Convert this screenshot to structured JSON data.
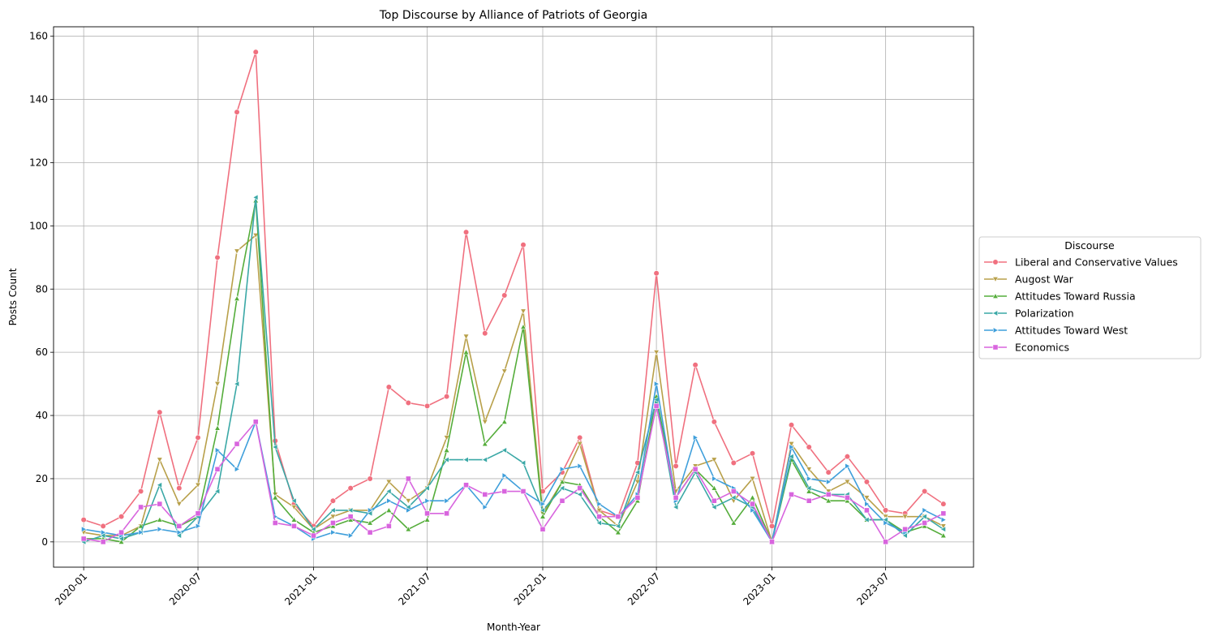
{
  "chart_data": {
    "type": "line",
    "title": "Top Discourse by Alliance of Patriots of Georgia",
    "xlabel": "Month-Year",
    "ylabel": "Posts Count",
    "x": [
      "2020-01",
      "2020-02",
      "2020-03",
      "2020-04",
      "2020-05",
      "2020-06",
      "2020-07",
      "2020-08",
      "2020-09",
      "2020-10",
      "2020-11",
      "2020-12",
      "2021-01",
      "2021-02",
      "2021-03",
      "2021-04",
      "2021-05",
      "2021-06",
      "2021-07",
      "2021-08",
      "2021-09",
      "2021-10",
      "2021-11",
      "2021-12",
      "2022-01",
      "2022-02",
      "2022-03",
      "2022-04",
      "2022-05",
      "2022-06",
      "2022-07",
      "2022-08",
      "2022-09",
      "2022-10",
      "2022-11",
      "2022-12",
      "2023-01",
      "2023-02",
      "2023-03",
      "2023-04",
      "2023-05",
      "2023-06",
      "2023-07",
      "2023-08",
      "2023-09",
      "2023-10"
    ],
    "x_ticks": [
      "2020-01",
      "2020-07",
      "2021-01",
      "2021-07",
      "2022-01",
      "2022-07",
      "2023-01",
      "2023-07"
    ],
    "y_ticks": [
      0,
      20,
      40,
      60,
      80,
      100,
      120,
      140,
      160
    ],
    "xlim": [
      "2019-11-14",
      "2023-11-18"
    ],
    "ylim": [
      -8,
      163
    ],
    "grid": true,
    "legend_title": "Discourse",
    "legend_position": "center-right-outside",
    "series": [
      {
        "name": "Liberal and Conservative Values",
        "color": "#f0707f",
        "marker": "circle",
        "values": [
          7,
          5,
          8,
          16,
          41,
          17,
          33,
          90,
          136,
          155,
          32,
          12,
          5,
          13,
          17,
          20,
          49,
          44,
          43,
          46,
          98,
          66,
          78,
          94,
          16,
          22,
          33,
          10,
          8,
          25,
          85,
          24,
          56,
          38,
          25,
          28,
          5,
          37,
          30,
          22,
          27,
          19,
          10,
          9,
          16,
          12
        ]
      },
      {
        "name": "Augost War",
        "color": "#b8a04a",
        "marker": "triangle-down",
        "values": [
          3,
          2,
          2,
          5,
          26,
          12,
          18,
          50,
          92,
          97,
          15,
          11,
          4,
          8,
          10,
          10,
          19,
          13,
          17,
          33,
          65,
          38,
          54,
          73,
          9,
          19,
          31,
          10,
          5,
          19,
          60,
          16,
          24,
          26,
          13,
          20,
          0,
          31,
          23,
          16,
          19,
          14,
          8,
          8,
          8,
          5
        ]
      },
      {
        "name": "Attitudes Toward Russia",
        "color": "#55ad3b",
        "marker": "triangle-up",
        "values": [
          1,
          1,
          0,
          5,
          7,
          5,
          8,
          36,
          77,
          108,
          14,
          7,
          3,
          5,
          7,
          6,
          10,
          4,
          7,
          29,
          60,
          31,
          38,
          68,
          8,
          19,
          18,
          8,
          3,
          13,
          46,
          14,
          23,
          17,
          6,
          14,
          0,
          26,
          16,
          13,
          13,
          7,
          7,
          3,
          5,
          2
        ]
      },
      {
        "name": "Polarization",
        "color": "#3aa8a6",
        "marker": "triangle-left",
        "values": [
          0,
          2,
          1,
          3,
          18,
          2,
          8,
          16,
          50,
          109,
          30,
          13,
          4,
          10,
          10,
          9,
          16,
          11,
          17,
          26,
          26,
          26,
          29,
          25,
          10,
          17,
          15,
          6,
          5,
          22,
          45,
          11,
          22,
          11,
          14,
          11,
          0,
          27,
          17,
          15,
          15,
          7,
          7,
          2,
          8,
          4
        ]
      },
      {
        "name": "Attitudes Toward West",
        "color": "#3f9fdb",
        "marker": "triangle-right",
        "values": [
          4,
          3,
          2,
          3,
          4,
          3,
          5,
          29,
          23,
          38,
          8,
          5,
          1,
          3,
          2,
          10,
          13,
          10,
          13,
          13,
          18,
          11,
          21,
          16,
          12,
          23,
          24,
          12,
          8,
          15,
          50,
          13,
          33,
          20,
          17,
          10,
          0,
          30,
          20,
          19,
          24,
          12,
          6,
          3,
          10,
          7
        ]
      },
      {
        "name": "Economics",
        "color": "#d865de",
        "marker": "square",
        "values": [
          1,
          0,
          3,
          11,
          12,
          5,
          9,
          23,
          31,
          38,
          6,
          5,
          2,
          6,
          8,
          3,
          5,
          20,
          9,
          9,
          18,
          15,
          16,
          16,
          4,
          13,
          17,
          8,
          8,
          14,
          43,
          14,
          23,
          13,
          16,
          12,
          0,
          15,
          13,
          15,
          14,
          10,
          0,
          4,
          6,
          9
        ]
      }
    ]
  }
}
